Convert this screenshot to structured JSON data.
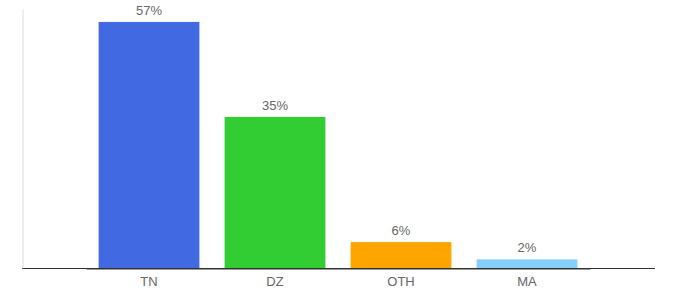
{
  "chart_data": {
    "type": "bar",
    "categories": [
      "TN",
      "DZ",
      "OTH",
      "MA"
    ],
    "values": [
      57,
      35,
      6,
      2
    ],
    "value_labels": [
      "57%",
      "35%",
      "6%",
      "2%"
    ],
    "colors": [
      "#4169e1",
      "#32cd32",
      "#ffa500",
      "#87cefa"
    ],
    "ylim": [
      0,
      60
    ],
    "data_labels": true,
    "tick_labels": "x"
  }
}
